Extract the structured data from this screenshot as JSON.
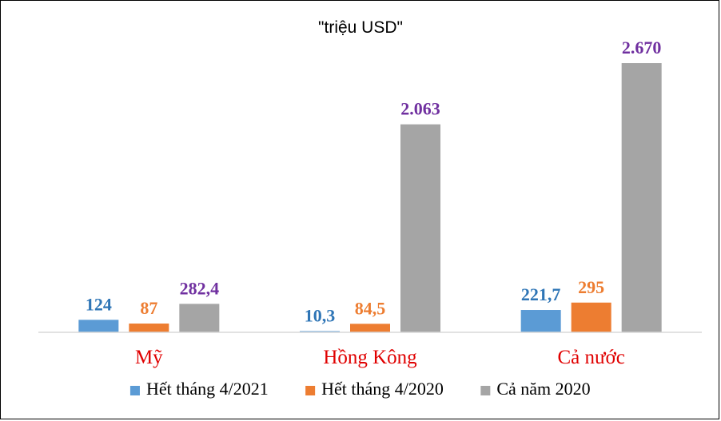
{
  "chart_data": {
    "type": "bar",
    "title": "\"triệu USD\"",
    "categories": [
      "Mỹ",
      "Hồng Kông",
      "Cả nước"
    ],
    "category_color": "#e00000",
    "ylim": [
      0,
      2900
    ],
    "grid": false,
    "legend_position": "bottom",
    "series": [
      {
        "name": "Hết tháng 4/2021",
        "color": "#5b9bd5",
        "label_color": "#2e75b6",
        "values": [
          124,
          10.3,
          221.7
        ],
        "labels": [
          "124",
          "10,3",
          "221,7"
        ]
      },
      {
        "name": "Hết tháng 4/2020",
        "color": "#ed7d31",
        "label_color": "#ed7d31",
        "values": [
          87,
          84.5,
          295
        ],
        "labels": [
          "87",
          "84,5",
          "295"
        ]
      },
      {
        "name": "Cả năm 2020",
        "color": "#a5a5a5",
        "label_color": "#7030a0",
        "values": [
          282.4,
          2063,
          2670
        ],
        "labels": [
          "282,4",
          "2.063",
          "2.670"
        ]
      }
    ]
  }
}
